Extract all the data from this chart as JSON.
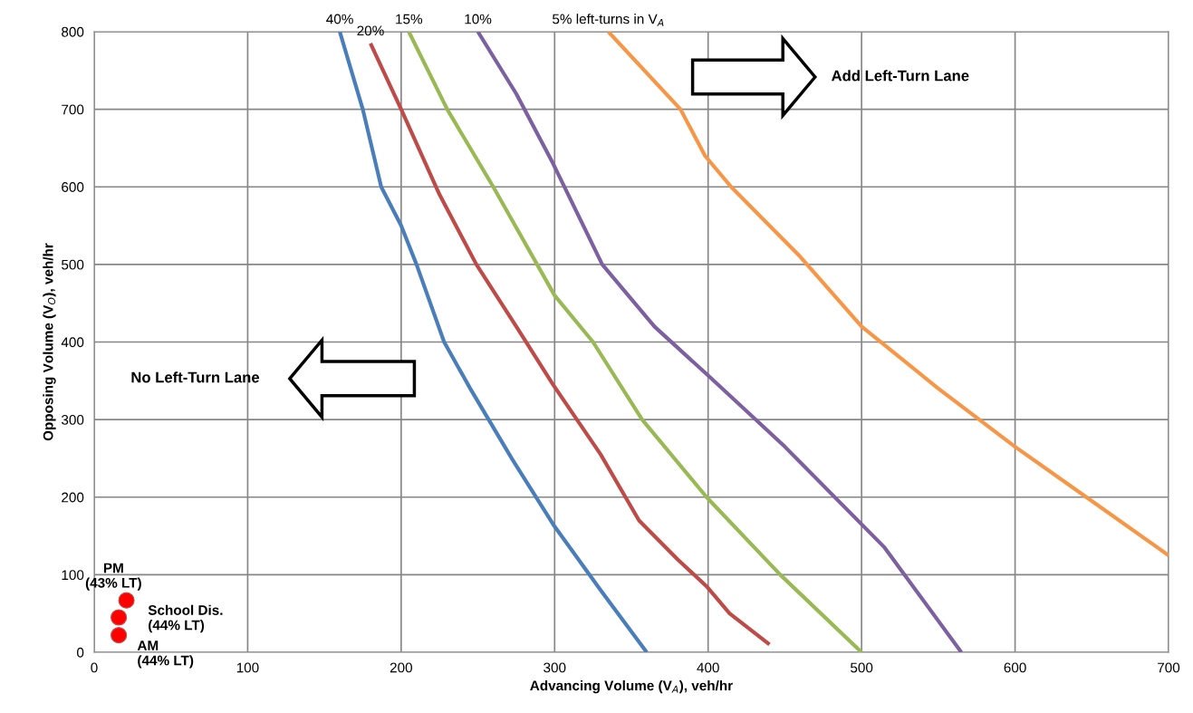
{
  "chart_data": {
    "type": "line",
    "xlabel": "Advancing Volume (V$_{A}$), veh/hr",
    "ylabel": "Opposing Volume (V$_{O}$), veh/hr",
    "xlim": [
      0,
      700
    ],
    "ylim": [
      0,
      800
    ],
    "xticks": [
      0,
      100,
      200,
      300,
      400,
      500,
      600,
      700
    ],
    "yticks": [
      0,
      100,
      200,
      300,
      400,
      500,
      600,
      700,
      800
    ],
    "grid": true,
    "marker": "none",
    "line_style": "solid",
    "series": [
      {
        "name": "40%",
        "color": "#4a7ebb",
        "x": [
          160,
          175,
          187,
          200,
          210,
          228,
          245,
          257,
          272,
          299,
          330,
          360
        ],
        "values": [
          800,
          700,
          600,
          550,
          500,
          400,
          340,
          300,
          250,
          165,
          80,
          0
        ]
      },
      {
        "name": "20%",
        "color": "#be4b48",
        "x": [
          180,
          200,
          225,
          249,
          275,
          299,
          330,
          355,
          380,
          399,
          414,
          440
        ],
        "values": [
          785,
          700,
          590,
          500,
          420,
          345,
          255,
          170,
          120,
          85,
          50,
          10
        ]
      },
      {
        "name": "15%",
        "color": "#98b954",
        "x": [
          205,
          230,
          260,
          300,
          325,
          357,
          399,
          447,
          500
        ],
        "values": [
          800,
          700,
          600,
          460,
          400,
          300,
          200,
          100,
          0
        ]
      },
      {
        "name": "10%",
        "color": "#7d60a0",
        "x": [
          250,
          275,
          299,
          331,
          365,
          401,
          450,
          515,
          565
        ],
        "values": [
          800,
          720,
          630,
          500,
          420,
          355,
          265,
          135,
          0
        ]
      },
      {
        "name": "5% left-turns in V$_{A}$",
        "color": "#f79646",
        "x": [
          335,
          382,
          398,
          415,
          460,
          500,
          550,
          600,
          650,
          700
        ],
        "values": [
          800,
          700,
          640,
          600,
          510,
          420,
          340,
          265,
          195,
          125
        ]
      },
      {
        "type": "scatter",
        "marker": "circle",
        "color": "#ff0000",
        "x": [
          21,
          16,
          16
        ],
        "values": [
          67,
          45,
          22
        ]
      }
    ],
    "annotations": [
      "PM\n(43% LT)",
      "School Dis.\n(44% LT)",
      "AM\n(44% LT)",
      "Add Left-Turn Lane",
      "No Left-Turn Lane"
    ]
  }
}
